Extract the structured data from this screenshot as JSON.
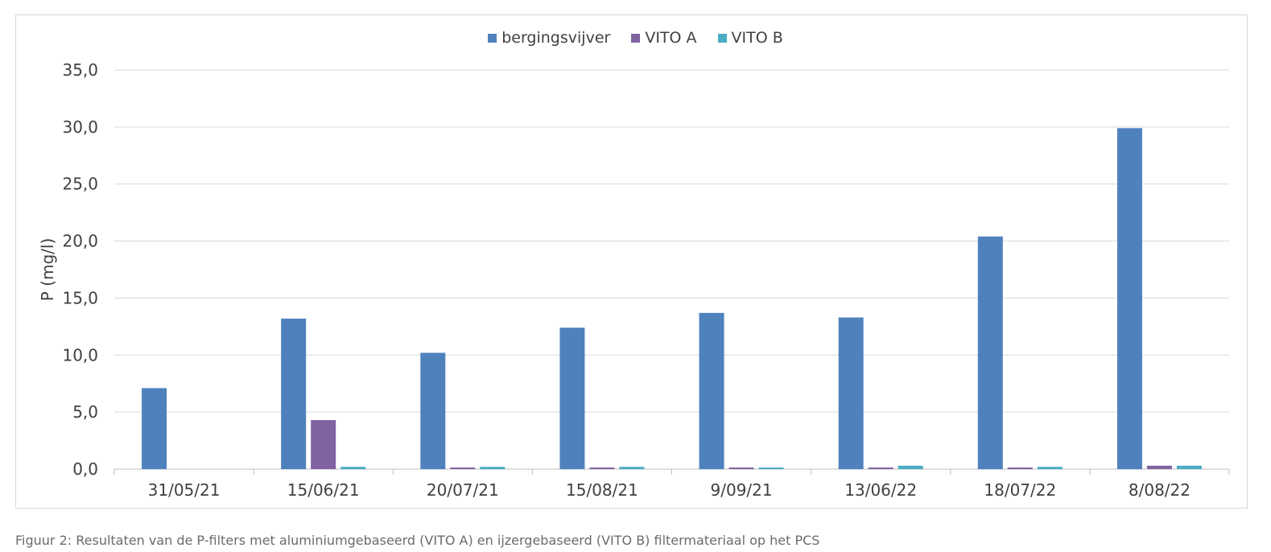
{
  "chart_data": {
    "type": "bar",
    "title": "",
    "xlabel": "",
    "ylabel": "P (mg/l)",
    "ylim": [
      0,
      35
    ],
    "yticks": [
      "0,0",
      "5,0",
      "10,0",
      "15,0",
      "20,0",
      "25,0",
      "30,0",
      "35,0"
    ],
    "grid": true,
    "legend_position": "top",
    "categories": [
      "31/05/21",
      "15/06/21",
      "20/07/21",
      "15/08/21",
      "9/09/21",
      "13/06/22",
      "18/07/22",
      "8/08/22"
    ],
    "series": [
      {
        "name": "bergingsvijver",
        "color": "#4f81bd",
        "values": [
          7.1,
          13.2,
          10.2,
          12.4,
          13.7,
          13.3,
          20.4,
          29.9
        ]
      },
      {
        "name": "VITO A",
        "color": "#8064a2",
        "values": [
          null,
          4.3,
          0.05,
          0.05,
          0.05,
          0.05,
          0.05,
          0.3
        ]
      },
      {
        "name": "VITO B",
        "color": "#4bacc6",
        "values": [
          null,
          0.2,
          0.2,
          0.2,
          0.05,
          0.3,
          0.2,
          0.3
        ]
      }
    ]
  },
  "caption": "Figuur 2: Resultaten van de P-filters met aluminiumgebaseerd (VITO A) en ijzergebaseerd (VITO B) filtermateriaal op het PCS"
}
